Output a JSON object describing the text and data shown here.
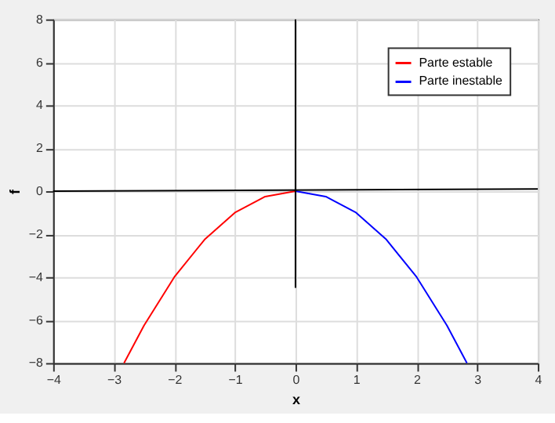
{
  "chart_data": {
    "type": "line",
    "xlabel": "x",
    "ylabel": "f",
    "xlim": [
      -4,
      4
    ],
    "xticks": [
      -4,
      -3,
      -2,
      -1,
      0,
      1,
      2,
      3,
      4
    ],
    "ylim": [
      -8,
      8
    ],
    "yticks": [
      -8,
      -6,
      -4,
      -2,
      0,
      2,
      4,
      6,
      8
    ],
    "grid": true,
    "legend": "top right",
    "line_style": "solid",
    "series": [
      {
        "name": "Parte estable",
        "color": "#ff0000",
        "x": [
          -2.83,
          -2.5,
          -2,
          -1.5,
          -1,
          -0.5,
          0
        ],
        "values": [
          -8,
          -6.25,
          -4,
          -2.25,
          -1,
          -0.25,
          0
        ]
      },
      {
        "name": "Parte inestable",
        "color": "#0000ff",
        "x": [
          0,
          0.5,
          1,
          1.5,
          2,
          2.5,
          2.83
        ],
        "values": [
          0,
          -0.25,
          -1,
          -2.25,
          -4,
          -6.25,
          -8
        ]
      },
      {
        "color": "#000000",
        "x": [
          -4,
          4
        ],
        "values": [
          0,
          0.1
        ]
      },
      {
        "color": "#000000",
        "x": [
          0,
          0
        ],
        "values": [
          8,
          -4.5
        ]
      }
    ]
  }
}
